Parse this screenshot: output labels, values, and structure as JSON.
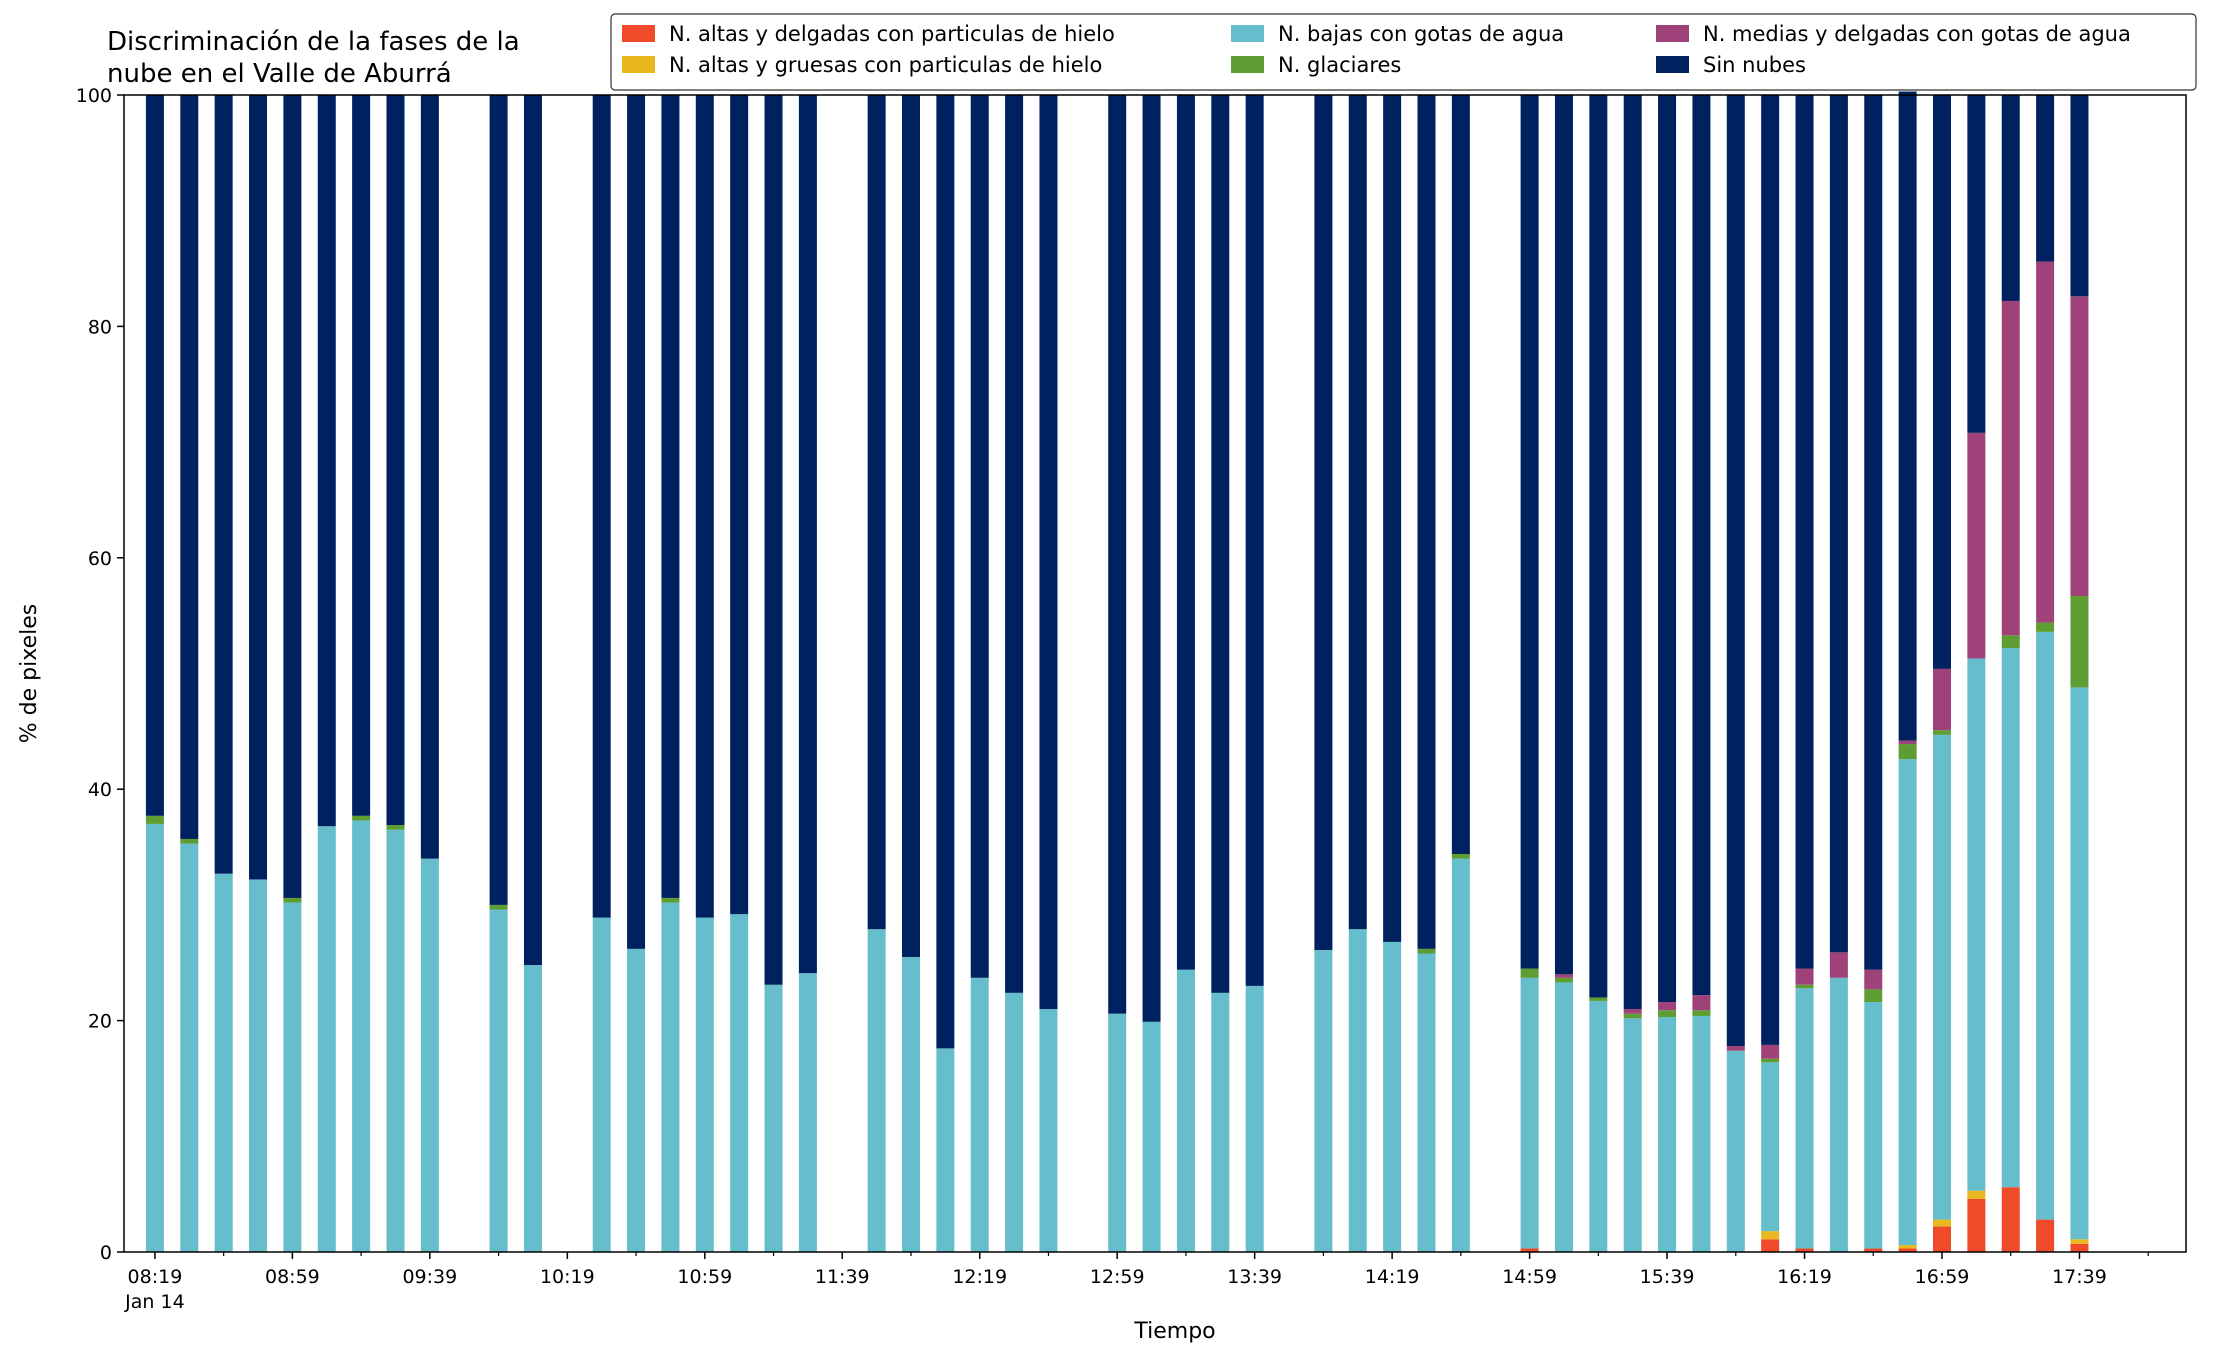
{
  "chart_data": {
    "type": "bar",
    "stacked": true,
    "title": "Discriminación de la fases de la\nnube en el Valle de Aburrá",
    "xlabel": "Tiempo",
    "ylabel": "% de pixeles",
    "ylim": [
      0,
      100
    ],
    "yticks": [
      0,
      20,
      40,
      60,
      80,
      100
    ],
    "date_label": "Jan 14",
    "xlim_minutes": [
      "08:10",
      "18:10"
    ],
    "xticks": [
      "08:19",
      "08:59",
      "09:39",
      "10:19",
      "10:59",
      "11:39",
      "12:19",
      "12:59",
      "13:39",
      "14:19",
      "14:59",
      "15:39",
      "16:19",
      "16:59",
      "17:39"
    ],
    "legend_position": "top-right",
    "grid": false,
    "x": [
      "08:19",
      "08:29",
      "08:39",
      "08:49",
      "08:59",
      "09:09",
      "09:19",
      "09:29",
      "09:39",
      "09:59",
      "10:09",
      "10:29",
      "10:39",
      "10:49",
      "10:59",
      "11:09",
      "11:19",
      "11:29",
      "11:49",
      "11:59",
      "12:09",
      "12:19",
      "12:29",
      "12:39",
      "12:59",
      "13:09",
      "13:19",
      "13:29",
      "13:39",
      "13:59",
      "14:09",
      "14:19",
      "14:29",
      "14:39",
      "14:59",
      "15:09",
      "15:19",
      "15:29",
      "15:39",
      "15:49",
      "15:59",
      "16:09",
      "16:19",
      "16:29",
      "16:39",
      "16:49",
      "16:59",
      "17:09",
      "17:19",
      "17:29",
      "17:39",
      "17:49"
    ],
    "series": [
      {
        "name": "N. altas y delgadas con particulas de hielo",
        "color": "#ef4a29",
        "values": [
          0,
          0,
          0,
          0,
          0,
          0,
          0,
          0,
          0,
          0,
          0,
          0,
          0,
          0,
          0,
          0,
          0,
          0,
          0,
          0,
          0,
          0,
          0,
          0,
          0,
          0,
          0,
          0,
          0,
          0,
          0,
          0,
          0,
          0,
          0.3,
          0,
          0,
          0,
          0,
          0,
          0,
          1.1,
          0.3,
          0,
          0.3,
          0.3,
          2.2,
          4.6,
          5.6,
          2.8,
          0.7,
          0
        ]
      },
      {
        "name": "N. altas y gruesas con particulas de hielo",
        "color": "#e9b81e",
        "values": [
          0,
          0,
          0,
          0,
          0,
          0,
          0,
          0,
          0,
          0,
          0,
          0,
          0,
          0,
          0,
          0,
          0,
          0,
          0,
          0,
          0,
          0,
          0,
          0,
          0,
          0,
          0,
          0,
          0,
          0,
          0,
          0,
          0,
          0,
          0,
          0,
          0,
          0,
          0,
          0,
          0,
          0.7,
          0,
          0,
          0,
          0.3,
          0.6,
          0.7,
          0,
          0,
          0.4,
          0
        ]
      },
      {
        "name": "N. bajas con gotas de agua",
        "color": "#66bdcb",
        "values": [
          37.0,
          35.3,
          32.7,
          32.2,
          30.2,
          36.8,
          37.3,
          36.5,
          34.0,
          29.6,
          24.8,
          28.9,
          26.2,
          30.2,
          28.9,
          29.2,
          23.1,
          24.1,
          27.9,
          25.5,
          17.6,
          23.7,
          22.4,
          21.0,
          20.6,
          19.9,
          24.4,
          22.4,
          23.0,
          26.1,
          27.9,
          26.8,
          25.8,
          34.0,
          23.4,
          23.3,
          21.7,
          20.2,
          20.3,
          20.4,
          17.4,
          14.6,
          22.5,
          23.7,
          21.3,
          42.0,
          41.9,
          46.0,
          46.6,
          50.8,
          47.7,
          0
        ]
      },
      {
        "name": "N. glaciares",
        "color": "#5d9d31",
        "values": [
          0.7,
          0.4,
          0,
          0,
          0.4,
          0,
          0.4,
          0.4,
          0,
          0.4,
          0,
          0,
          0,
          0.4,
          0,
          0,
          0,
          0,
          0,
          0,
          0,
          0,
          0,
          0,
          0,
          0,
          0,
          0,
          0,
          0,
          0,
          0,
          0.4,
          0.4,
          0.8,
          0.4,
          0.3,
          0.4,
          0.6,
          0.5,
          0,
          0.3,
          0.3,
          0,
          1.1,
          1.3,
          0.4,
          0,
          1.1,
          0.8,
          7.9,
          0
        ]
      },
      {
        "name": "N. medias y delgadas con gotas de agua",
        "color": "#a0427a",
        "values": [
          0,
          0,
          0,
          0,
          0,
          0,
          0,
          0,
          0,
          0,
          0,
          0,
          0,
          0,
          0,
          0,
          0,
          0,
          0,
          0,
          0,
          0,
          0,
          0,
          0,
          0,
          0,
          0,
          0,
          0,
          0,
          0,
          0,
          0,
          0,
          0.3,
          0,
          0.4,
          0.7,
          1.3,
          0.4,
          1.2,
          1.4,
          2.2,
          1.7,
          0.3,
          5.3,
          19.5,
          28.9,
          31.2,
          25.9,
          0
        ]
      },
      {
        "name": "Sin nubes",
        "color": "#00215f",
        "values": [
          62.3,
          64.3,
          67.3,
          67.8,
          69.4,
          63.2,
          62.3,
          63.1,
          66.0,
          70.0,
          75.2,
          71.1,
          73.8,
          69.4,
          71.1,
          70.8,
          76.9,
          75.9,
          72.1,
          74.5,
          82.4,
          76.3,
          77.6,
          79.0,
          79.4,
          80.1,
          75.6,
          77.6,
          77.0,
          73.9,
          72.1,
          73.2,
          73.8,
          65.6,
          75.5,
          76.0,
          78.0,
          79.0,
          78.4,
          77.8,
          82.2,
          82.1,
          75.5,
          74.1,
          75.6,
          56.1,
          49.6,
          29.2,
          17.8,
          14.4,
          17.4,
          0
        ]
      }
    ]
  }
}
